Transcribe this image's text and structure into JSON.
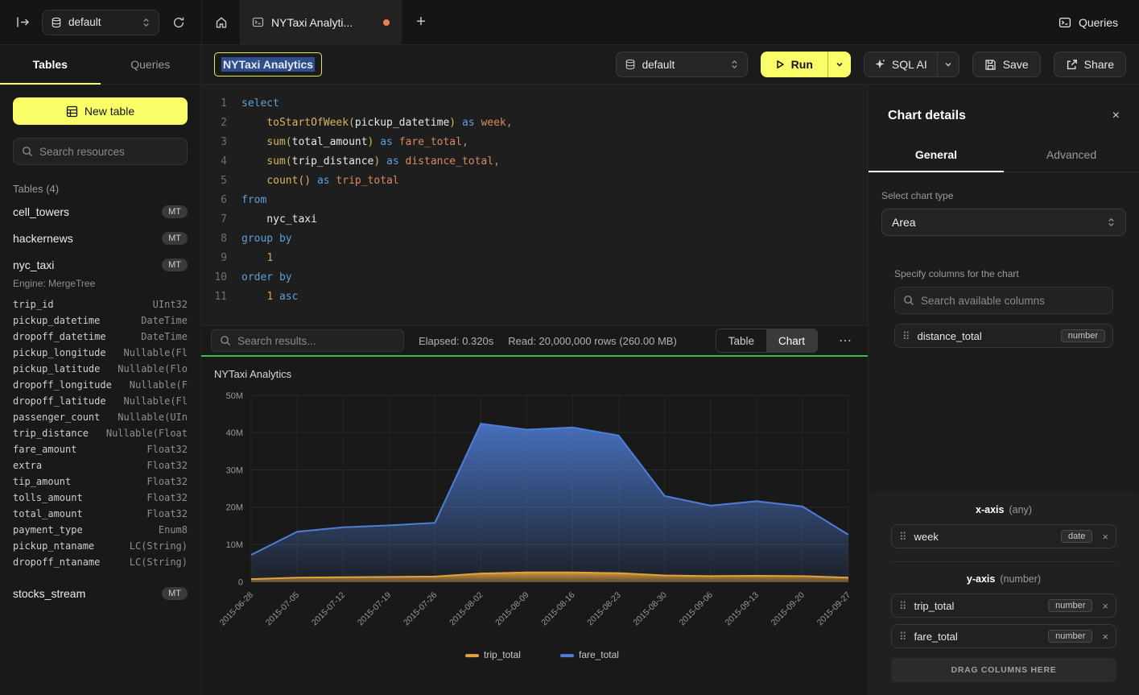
{
  "topbar": {
    "database_selector": "default",
    "tab_title": "NYTaxi Analyti...",
    "new_tab_label": "+",
    "queries_label": "Queries"
  },
  "sidebar": {
    "tabs": [
      {
        "label": "Tables",
        "active": true
      },
      {
        "label": "Queries",
        "active": false
      }
    ],
    "new_table_label": "New table",
    "search_placeholder": "Search resources",
    "section_label": "Tables (4)",
    "tables": [
      {
        "name": "cell_towers",
        "badge": "MT"
      },
      {
        "name": "hackernews",
        "badge": "MT"
      },
      {
        "name": "nyc_taxi",
        "badge": "MT",
        "expanded": true,
        "engine": "Engine: MergeTree",
        "columns": [
          [
            "trip_id",
            "UInt32"
          ],
          [
            "pickup_datetime",
            "DateTime"
          ],
          [
            "dropoff_datetime",
            "DateTime"
          ],
          [
            "pickup_longitude",
            "Nullable(Fl"
          ],
          [
            "pickup_latitude",
            "Nullable(Flo"
          ],
          [
            "dropoff_longitude",
            "Nullable(F"
          ],
          [
            "dropoff_latitude",
            "Nullable(Fl"
          ],
          [
            "passenger_count",
            "Nullable(UIn"
          ],
          [
            "trip_distance",
            "Nullable(Float"
          ],
          [
            "fare_amount",
            "Float32"
          ],
          [
            "extra",
            "Float32"
          ],
          [
            "tip_amount",
            "Float32"
          ],
          [
            "tolls_amount",
            "Float32"
          ],
          [
            "total_amount",
            "Float32"
          ],
          [
            "payment_type",
            "Enum8"
          ],
          [
            "pickup_ntaname",
            "LC(String)"
          ],
          [
            "dropoff_ntaname",
            "LC(String)"
          ]
        ]
      },
      {
        "name": "stocks_stream",
        "badge": "MT"
      }
    ]
  },
  "toolbar": {
    "title_value": "NYTaxi Analytics",
    "database_selector": "default",
    "run_label": "Run",
    "sql_ai_label": "SQL AI",
    "save_label": "Save",
    "share_label": "Share"
  },
  "editor": {
    "lines": [
      [
        [
          "kw",
          "select"
        ]
      ],
      [
        [
          "pl",
          "    "
        ],
        [
          "fn",
          "toStartOfWeek("
        ],
        [
          "pl",
          "pickup_datetime"
        ],
        [
          "fn",
          ")"
        ],
        [
          "pl",
          " "
        ],
        [
          "kw",
          "as"
        ],
        [
          "pl",
          " "
        ],
        [
          "al",
          "week,"
        ]
      ],
      [
        [
          "pl",
          "    "
        ],
        [
          "fn",
          "sum("
        ],
        [
          "pl",
          "total_amount"
        ],
        [
          "fn",
          ")"
        ],
        [
          "pl",
          " "
        ],
        [
          "kw",
          "as"
        ],
        [
          "pl",
          " "
        ],
        [
          "al",
          "fare_total,"
        ]
      ],
      [
        [
          "pl",
          "    "
        ],
        [
          "fn",
          "sum("
        ],
        [
          "pl",
          "trip_distance"
        ],
        [
          "fn",
          ")"
        ],
        [
          "pl",
          " "
        ],
        [
          "kw",
          "as"
        ],
        [
          "pl",
          " "
        ],
        [
          "al",
          "distance_total,"
        ]
      ],
      [
        [
          "pl",
          "    "
        ],
        [
          "fn",
          "count()"
        ],
        [
          "pl",
          " "
        ],
        [
          "kw",
          "as"
        ],
        [
          "pl",
          " "
        ],
        [
          "al",
          "trip_total"
        ]
      ],
      [
        [
          "kw",
          "from"
        ]
      ],
      [
        [
          "pl",
          "    nyc_taxi"
        ]
      ],
      [
        [
          "kw",
          "group by"
        ]
      ],
      [
        [
          "pl",
          "    "
        ],
        [
          "num",
          "1"
        ]
      ],
      [
        [
          "kw",
          "order by"
        ]
      ],
      [
        [
          "pl",
          "    "
        ],
        [
          "num",
          "1"
        ],
        [
          "pl",
          " "
        ],
        [
          "kw",
          "asc"
        ]
      ]
    ]
  },
  "results": {
    "search_placeholder": "Search results...",
    "elapsed": "Elapsed: 0.320s",
    "read": "Read: 20,000,000 rows (260.00 MB)",
    "views": [
      "Table",
      "Chart"
    ],
    "active_view": "Chart",
    "more_label": "⋯"
  },
  "chart_data": {
    "type": "area",
    "title": "NYTaxi Analytics",
    "x": [
      "2015-06-28",
      "2015-07-05",
      "2015-07-12",
      "2015-07-19",
      "2015-07-26",
      "2015-08-02",
      "2015-08-09",
      "2015-08-16",
      "2015-08-23",
      "2015-08-30",
      "2015-09-06",
      "2015-09-13",
      "2015-09-20",
      "2015-09-27"
    ],
    "series": [
      {
        "name": "trip_total",
        "color": "#e3a23d",
        "values": [
          700000,
          1100000,
          1200000,
          1300000,
          1400000,
          2200000,
          2500000,
          2500000,
          2300000,
          1700000,
          1500000,
          1600000,
          1500000,
          1100000
        ]
      },
      {
        "name": "fare_total",
        "color": "#4e7ed8",
        "values": [
          7200000,
          13400000,
          14600000,
          15100000,
          15800000,
          42400000,
          40800000,
          41400000,
          39200000,
          23000000,
          20400000,
          21600000,
          20200000,
          12600000
        ]
      }
    ],
    "ylim": [
      0,
      50000000
    ],
    "yticks": [
      "0",
      "10M",
      "20M",
      "30M",
      "40M",
      "50M"
    ],
    "grid": true,
    "legend_position": "bottom"
  },
  "chart_panel": {
    "title": "Chart details",
    "close_label": "×",
    "tabs": [
      {
        "label": "General",
        "active": true
      },
      {
        "label": "Advanced",
        "active": false
      }
    ],
    "chart_type_label": "Select chart type",
    "chart_type_value": "Area",
    "columns_label": "Specify columns for the chart",
    "search_placeholder": "Search available columns",
    "available_columns": [
      {
        "name": "distance_total",
        "type": "number"
      }
    ],
    "x_axis": {
      "label": "x-axis",
      "hint": "(any)",
      "items": [
        {
          "name": "week",
          "type": "date"
        }
      ]
    },
    "y_axis": {
      "label": "y-axis",
      "hint": "(number)",
      "items": [
        {
          "name": "trip_total",
          "type": "number"
        },
        {
          "name": "fare_total",
          "type": "number"
        }
      ]
    },
    "drop_zone_label": "DRAG COLUMNS HERE"
  }
}
